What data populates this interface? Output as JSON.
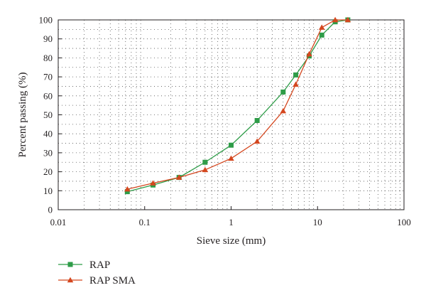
{
  "chart_data": {
    "type": "line",
    "xscale": "log",
    "xlabel": "Sieve size (mm)",
    "ylabel": "Percent passing (%)",
    "xlim": [
      0.01,
      100
    ],
    "ylim": [
      0,
      100
    ],
    "xticks": [
      "0.01",
      "0.1",
      "1",
      "10",
      "100"
    ],
    "yticks": [
      "0",
      "10",
      "20",
      "30",
      "40",
      "50",
      "60",
      "70",
      "80",
      "90",
      "100"
    ],
    "grid": "dotted",
    "legend_position": "bottom-left",
    "series": [
      {
        "name": "RAP",
        "color": "#2e9c48",
        "marker": "square",
        "x": [
          0.063,
          0.125,
          0.25,
          0.5,
          1,
          2,
          4,
          5.6,
          8,
          11.2,
          16,
          22.4
        ],
        "y": [
          9.5,
          13,
          17,
          25,
          34,
          47,
          62,
          71,
          81,
          92,
          99,
          100
        ]
      },
      {
        "name": "RAP SMA",
        "color": "#d4471f",
        "marker": "triangle",
        "x": [
          0.063,
          0.125,
          0.25,
          0.5,
          1,
          2,
          4,
          5.6,
          8,
          11.2,
          16,
          22.4
        ],
        "y": [
          10.8,
          14,
          17,
          21,
          27,
          36,
          52,
          66,
          82,
          96,
          100,
          100
        ]
      }
    ]
  }
}
